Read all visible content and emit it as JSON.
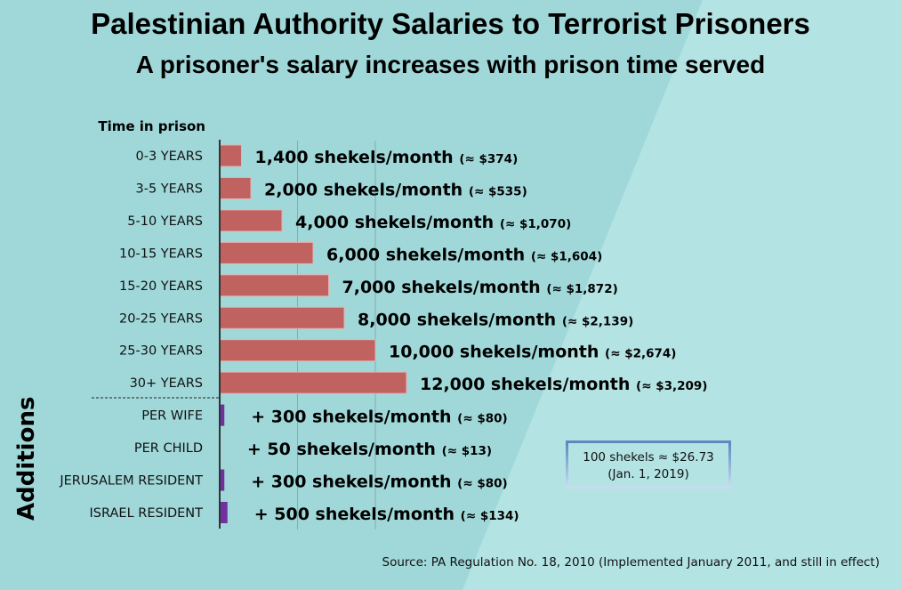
{
  "chart_data": {
    "type": "bar",
    "orientation": "horizontal",
    "title": "Palestinian Authority Salaries to Terrorist Prisoners",
    "subtitle": "A prisoner's salary increases with prison time served",
    "ylabel": "Time in prison",
    "group_label": "Additions",
    "categories": [
      "0-3 YEARS",
      "3-5 YEARS",
      "5-10 YEARS",
      "10-15 YEARS",
      "15-20 YEARS",
      "20-25 YEARS",
      "25-30 YEARS",
      "30+ YEARS",
      "PER WIFE",
      "PER CHILD",
      "JERUSALEM RESIDENT",
      "ISRAEL RESIDENT"
    ],
    "values": [
      1400,
      2000,
      4000,
      6000,
      7000,
      8000,
      10000,
      12000,
      300,
      50,
      300,
      500
    ],
    "labels": [
      "1,400 shekels/month",
      "2,000 shekels/month",
      "4,000 shekels/month",
      "6,000 shekels/month",
      "7,000 shekels/month",
      "8,000 shekels/month",
      "10,000 shekels/month",
      "12,000 shekels/month",
      "+ 300 shekels/month",
      "+ 50 shekels/month",
      "+ 300 shekels/month",
      "+ 500 shekels/month"
    ],
    "usd_labels": [
      "(≈ $374)",
      "(≈ $535)",
      "(≈ $1,070)",
      "(≈ $1,604)",
      "(≈ $1,872)",
      "(≈ $2,139)",
      "(≈ $2,674)",
      "(≈ $3,209)",
      "(≈ $80)",
      "(≈ $13)",
      "(≈ $80)",
      "(≈ $134)"
    ],
    "xlim": [
      0,
      20000
    ],
    "grid": true,
    "gridlines_at": [
      5000,
      10000
    ],
    "colors": {
      "salary": "#c0625f",
      "addition": "#7030a0",
      "background": "#a0d8d9",
      "background_light": "#b4e3e3"
    }
  },
  "note": {
    "line1": "100 shekels ≈ $26.73",
    "line2": "(Jan. 1, 2019)"
  },
  "source": "Source: PA Regulation No. 18, 2010 (Implemented January 2011, and still in effect)"
}
